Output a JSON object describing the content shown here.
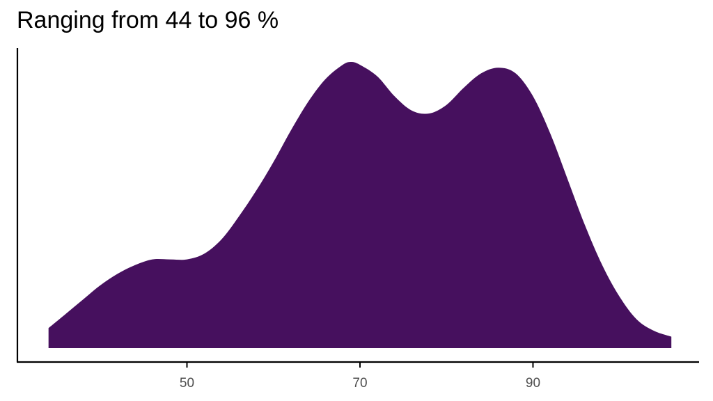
{
  "chart_data": {
    "type": "area",
    "title": "Ranging from 44 to 96 %",
    "xlabel": "",
    "ylabel": "",
    "xlim": [
      30.4,
      109.2
    ],
    "ylim": [
      0,
      1.06
    ],
    "x_ticks": [
      50,
      70,
      90
    ],
    "grid": false,
    "legend": "none",
    "fill_color": "#46105e",
    "series": [
      {
        "x": [
          34,
          36,
          38,
          40,
          42,
          44,
          46,
          48,
          50,
          52,
          54,
          56,
          58,
          60,
          62,
          64,
          66,
          68,
          69,
          70,
          72,
          74,
          76,
          78,
          80,
          82,
          84,
          86,
          88,
          90,
          92,
          94,
          96,
          98,
          100,
          102,
          104,
          106
        ],
        "y": [
          0.07,
          0.12,
          0.17,
          0.22,
          0.26,
          0.29,
          0.31,
          0.31,
          0.31,
          0.33,
          0.38,
          0.46,
          0.55,
          0.65,
          0.76,
          0.86,
          0.94,
          0.99,
          1.0,
          0.99,
          0.95,
          0.88,
          0.83,
          0.82,
          0.85,
          0.91,
          0.96,
          0.98,
          0.96,
          0.88,
          0.75,
          0.59,
          0.43,
          0.29,
          0.18,
          0.1,
          0.06,
          0.04
        ]
      }
    ]
  }
}
